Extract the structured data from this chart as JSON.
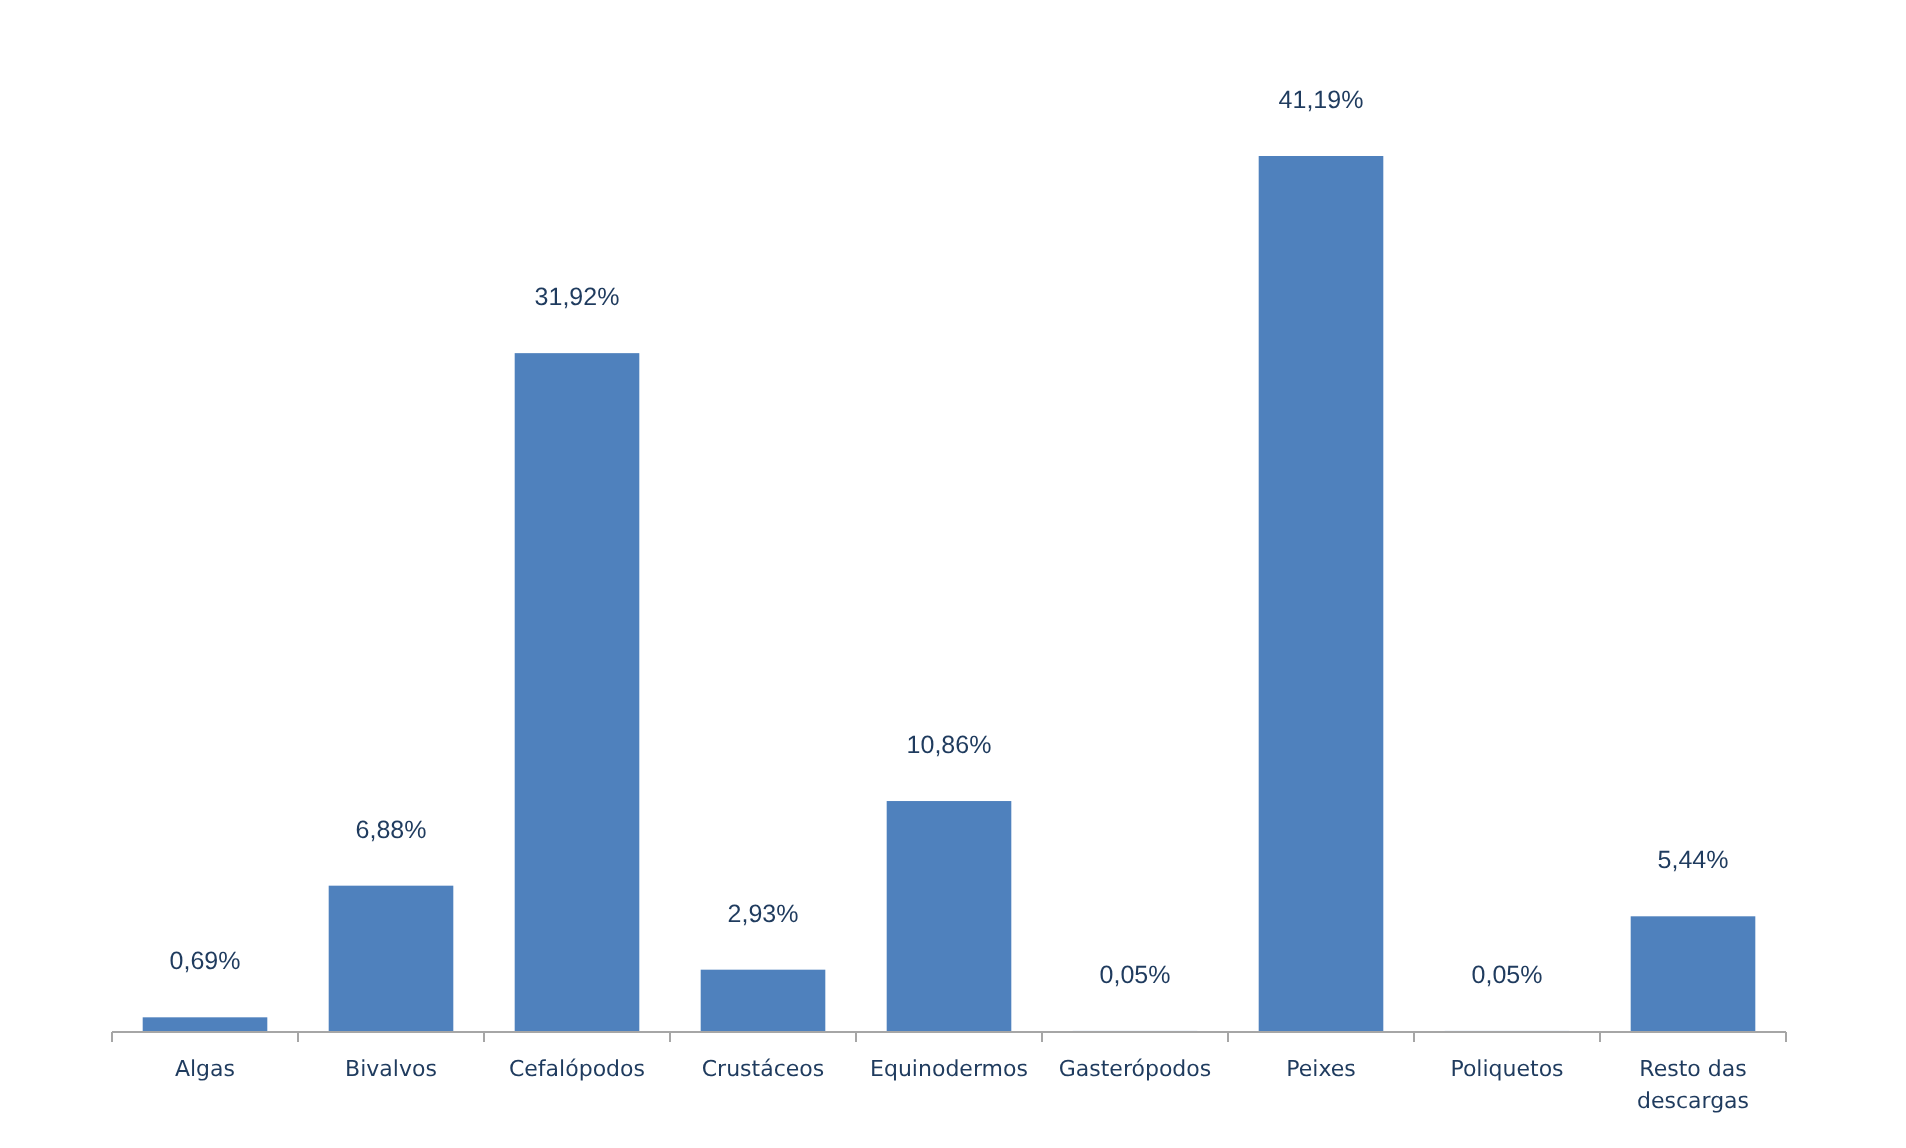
{
  "chart_data": {
    "type": "bar",
    "categories": [
      "Algas",
      "Bivalvos",
      "Cefalópodos",
      "Crustáceos",
      "Equinodermos",
      "Gasterópodos",
      "Peixes",
      "Poliquetos",
      "Resto das descargas"
    ],
    "values": [
      0.69,
      6.88,
      31.92,
      2.93,
      10.86,
      0.05,
      41.19,
      0.05,
      5.44
    ],
    "value_labels": [
      "0,69%",
      "6,88%",
      "31,92%",
      "2,93%",
      "10,86%",
      "0,05%",
      "41,19%",
      "0,05%",
      "5,44%"
    ],
    "color": "#4f81bd",
    "tick_labels": "x"
  }
}
